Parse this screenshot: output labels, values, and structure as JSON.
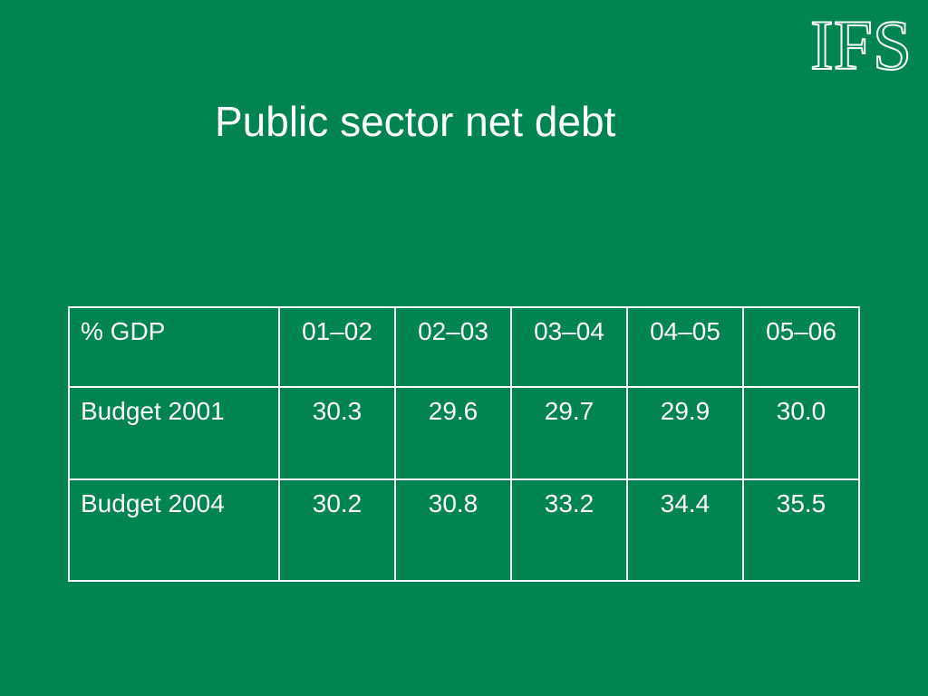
{
  "logo": {
    "text": "IFS"
  },
  "title": "Public sector net debt",
  "table": {
    "header": [
      "% GDP",
      "01–02",
      "02–03",
      "03–04",
      "04–05",
      "05–06"
    ],
    "rows": [
      {
        "label": "Budget 2001",
        "values": [
          "30.3",
          "29.6",
          "29.7",
          "29.9",
          "30.0"
        ]
      },
      {
        "label": "Budget 2004",
        "values": [
          "30.2",
          "30.8",
          "33.2",
          "34.4",
          "35.5"
        ]
      }
    ]
  },
  "colors": {
    "background": "#008450",
    "text": "#ffffff"
  }
}
